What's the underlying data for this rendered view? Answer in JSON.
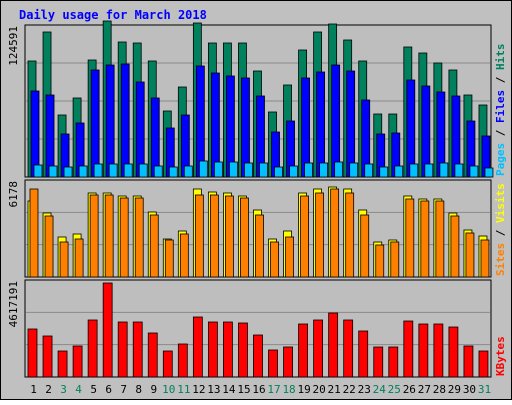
{
  "chart_data": [
    {
      "type": "bar",
      "title": "Daily usage for March 2018",
      "categories": [
        "1",
        "2",
        "3",
        "4",
        "5",
        "6",
        "7",
        "8",
        "9",
        "10",
        "11",
        "12",
        "13",
        "14",
        "15",
        "16",
        "17",
        "18",
        "19",
        "20",
        "21",
        "22",
        "23",
        "24",
        "25",
        "26",
        "27",
        "28",
        "29",
        "30",
        "31"
      ],
      "weekend_days": [
        3,
        4,
        10,
        11,
        17,
        18,
        24,
        25,
        31
      ],
      "weekend_color": "#00805c",
      "weekday_color": "#000000",
      "ylabel_parts": [
        {
          "text": "Pages",
          "color": "#00c0ff"
        },
        {
          "text": " / ",
          "color": "#000000"
        },
        {
          "text": "Files",
          "color": "#0000ff"
        },
        {
          "text": " / ",
          "color": "#000000"
        },
        {
          "text": "Hits",
          "color": "#008060"
        }
      ],
      "ymax_label": "124591",
      "ymax": 124591,
      "series": [
        {
          "name": "Hits",
          "color": "#00805c",
          "values": [
            97400,
            121500,
            52100,
            66000,
            97700,
            130300,
            112800,
            111800,
            97400,
            55200,
            75200,
            128500,
            112000,
            112200,
            111700,
            88600,
            54400,
            76800,
            106500,
            121000,
            127600,
            114900,
            96800,
            52400,
            52400,
            108500,
            103700,
            95400,
            89200,
            68800,
            60500
          ]
        },
        {
          "name": "Files",
          "color": "#0000ff",
          "values": [
            72200,
            68200,
            35600,
            45400,
            89100,
            93600,
            94500,
            79300,
            65700,
            40900,
            51900,
            93200,
            87100,
            84800,
            83000,
            67800,
            37900,
            46500,
            83000,
            87900,
            93400,
            88700,
            64400,
            36100,
            36600,
            81200,
            75800,
            71400,
            67700,
            46900,
            34000
          ]
        },
        {
          "name": "Pages",
          "color": "#00c0ff",
          "values": [
            10300,
            9500,
            8000,
            8900,
            11000,
            11200,
            11000,
            10700,
            9600,
            8100,
            8900,
            13100,
            12500,
            12900,
            11900,
            11300,
            8300,
            9300,
            11400,
            12100,
            12600,
            12000,
            11000,
            8700,
            8900,
            11200,
            11000,
            11300,
            10800,
            9500,
            7600
          ]
        }
      ]
    },
    {
      "type": "bar",
      "categories": [
        "1",
        "2",
        "3",
        "4",
        "5",
        "6",
        "7",
        "8",
        "9",
        "10",
        "11",
        "12",
        "13",
        "14",
        "15",
        "16",
        "17",
        "18",
        "19",
        "20",
        "21",
        "22",
        "23",
        "24",
        "25",
        "26",
        "27",
        "28",
        "29",
        "30",
        "31"
      ],
      "ylabel_parts": [
        {
          "text": "Sites",
          "color": "#ff8000"
        },
        {
          "text": " / ",
          "color": "#000000"
        },
        {
          "text": "Visits",
          "color": "#ffff00"
        }
      ],
      "ymax_label": "6178",
      "ymax": 6178,
      "series": [
        {
          "name": "Visits",
          "color": "#ffff00",
          "values": [
            5000,
            4200,
            2600,
            2800,
            5500,
            5500,
            5300,
            5300,
            4300,
            2500,
            3000,
            5800,
            5600,
            5500,
            5300,
            4400,
            2500,
            3000,
            5500,
            5800,
            5900,
            5800,
            4400,
            2300,
            2400,
            5300,
            5100,
            5100,
            4200,
            3100,
            2700
          ]
        },
        {
          "name": "Sites",
          "color": "#ff8000",
          "values": [
            5800,
            4000,
            2300,
            2500,
            5400,
            5400,
            5200,
            5200,
            4100,
            2400,
            2800,
            5400,
            5400,
            5300,
            5200,
            4100,
            2300,
            2600,
            5300,
            5500,
            5800,
            5500,
            4100,
            2100,
            2300,
            5100,
            5000,
            5000,
            4000,
            2900,
            2400
          ]
        }
      ]
    },
    {
      "type": "bar",
      "categories": [
        "1",
        "2",
        "3",
        "4",
        "5",
        "6",
        "7",
        "8",
        "9",
        "10",
        "11",
        "12",
        "13",
        "14",
        "15",
        "16",
        "17",
        "18",
        "19",
        "20",
        "21",
        "22",
        "23",
        "24",
        "25",
        "26",
        "27",
        "28",
        "29",
        "30",
        "31"
      ],
      "ylabel_parts": [
        {
          "text": "KBytes",
          "color": "#ff0000"
        }
      ],
      "ymax_label": "4617191",
      "ymax": 4617191,
      "series": [
        {
          "name": "KBytes",
          "color": "#ff0000",
          "values": [
            2360000,
            2020000,
            1270000,
            1540000,
            2800000,
            4617191,
            2700000,
            2700000,
            2170000,
            1280000,
            1630000,
            2960000,
            2700000,
            2700000,
            2670000,
            2080000,
            1310000,
            1480000,
            2600000,
            2800000,
            3120000,
            2800000,
            2250000,
            1450000,
            1450000,
            2730000,
            2620000,
            2590000,
            2450000,
            1510000,
            1260000
          ]
        }
      ]
    }
  ],
  "colors": {
    "outer_background": "#c0c0c0",
    "plot_background": "#bebebe",
    "gridline": "#8a8a8a",
    "title": "#0000ff",
    "bar_outline": "#000000"
  }
}
